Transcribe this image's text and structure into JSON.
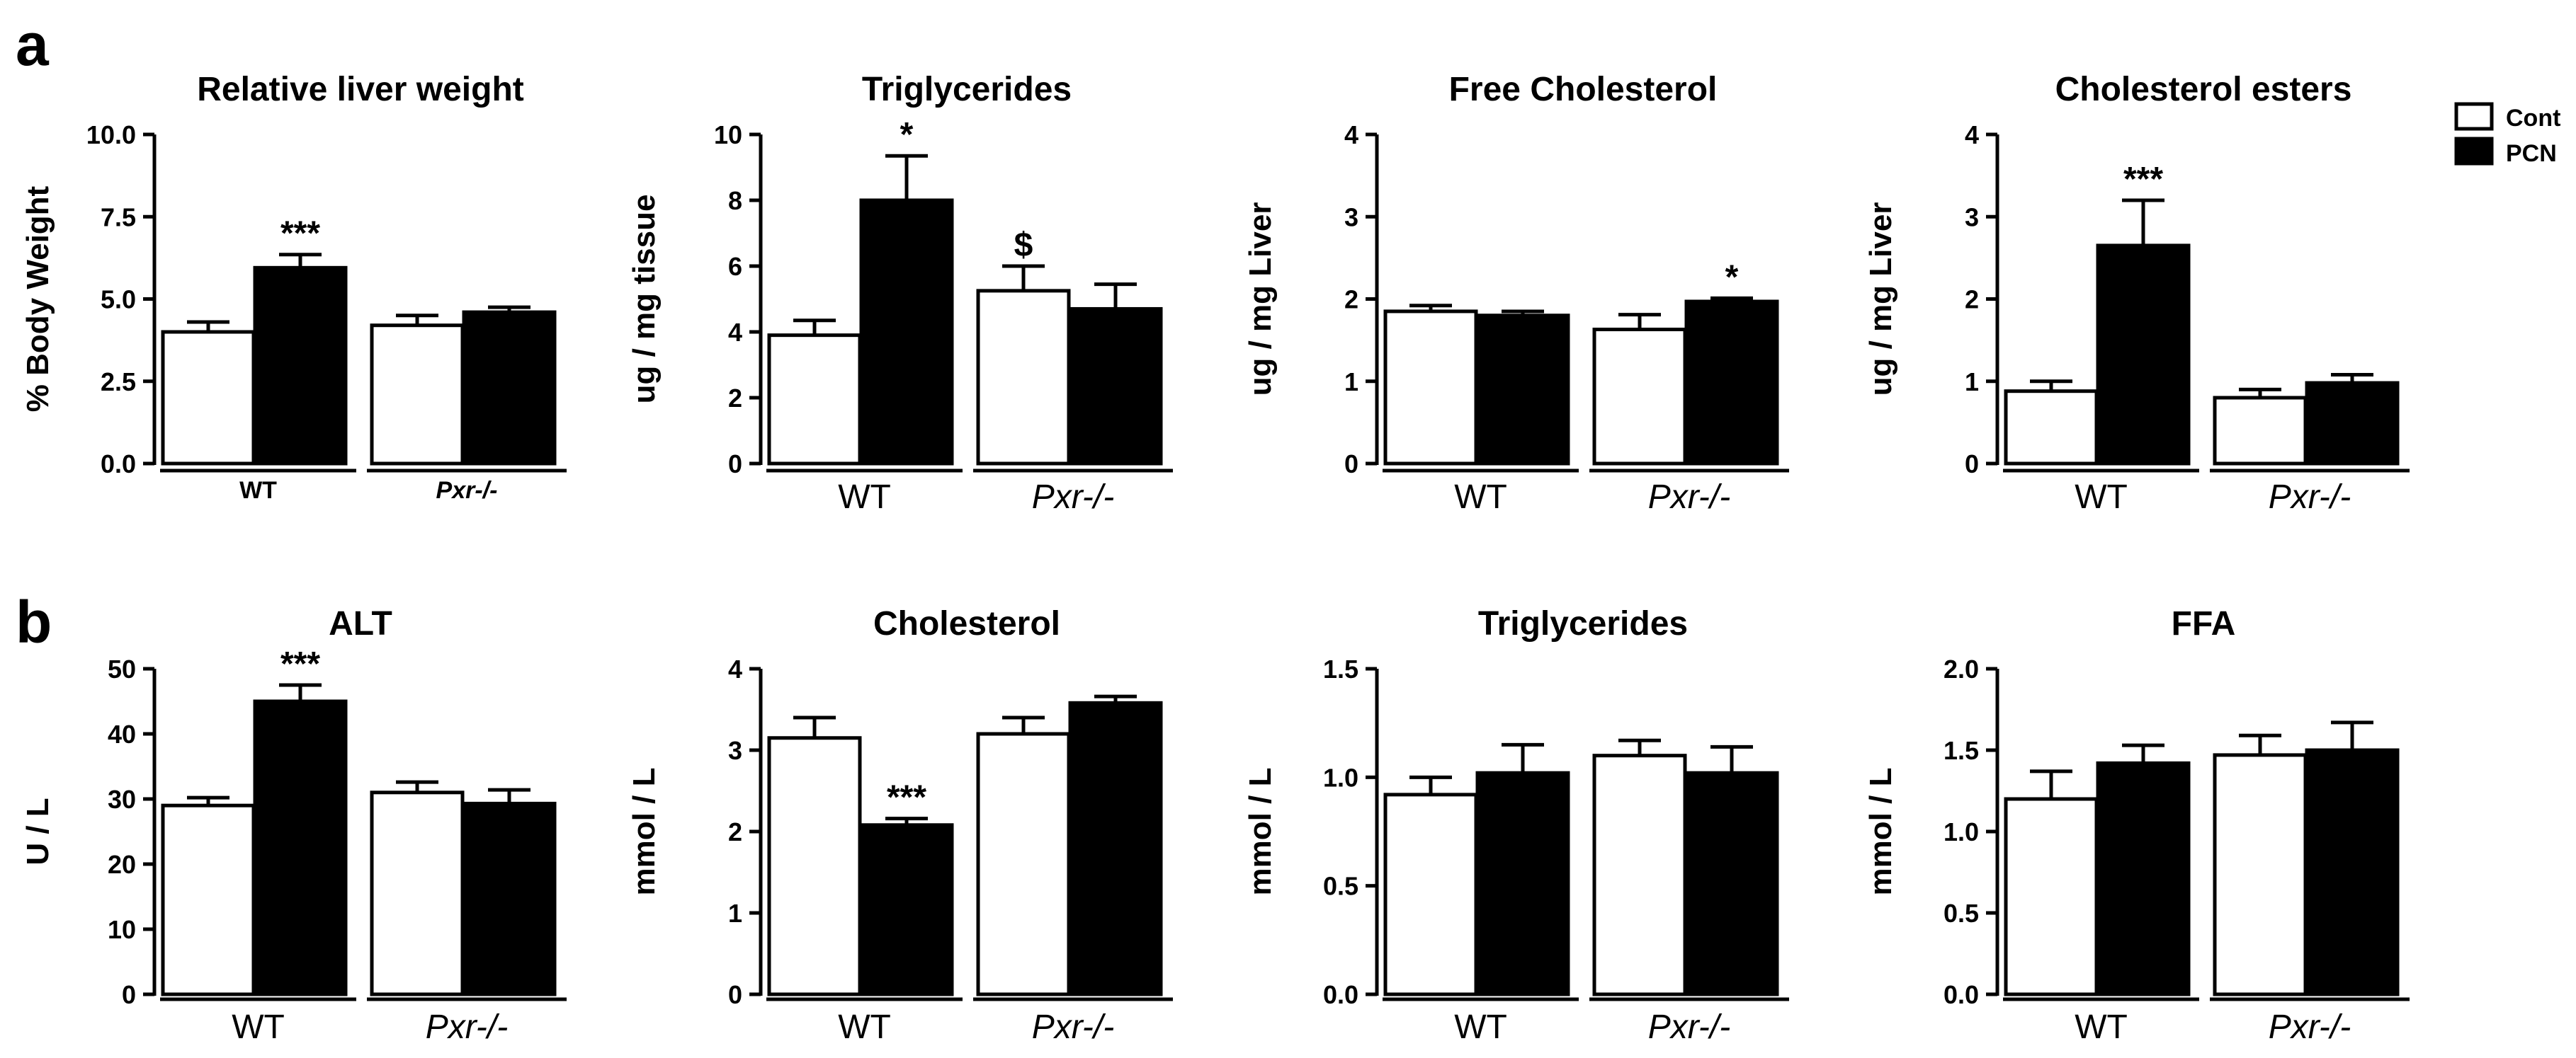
{
  "figure": {
    "panel_labels": [
      "a",
      "b"
    ],
    "legend": [
      {
        "label": "Cont",
        "fill": "#ffffff"
      },
      {
        "label": "PCN",
        "fill": "#000000"
      }
    ]
  },
  "chart_data": [
    {
      "type": "bar",
      "panel": "a",
      "title": "Relative liver weight",
      "ylabel": "% Body Weight",
      "groups": [
        "WT",
        "Pxr-/-"
      ],
      "group_style": "small",
      "series": [
        {
          "name": "Cont",
          "values": [
            4.0,
            4.2
          ],
          "errors": [
            0.3,
            0.3
          ]
        },
        {
          "name": "PCN",
          "values": [
            5.95,
            4.6
          ],
          "errors": [
            0.4,
            0.15
          ]
        }
      ],
      "ylim": [
        0,
        10
      ],
      "yticks": [
        "0.0",
        "2.5",
        "5.0",
        "7.5",
        "10.0"
      ],
      "annotations": [
        {
          "group": 0,
          "series": 1,
          "text": "***"
        }
      ]
    },
    {
      "type": "bar",
      "panel": "a",
      "title": "Triglycerides",
      "ylabel": "ug / mg tissue",
      "groups": [
        "WT",
        "Pxr-/-"
      ],
      "group_style": "big",
      "series": [
        {
          "name": "Cont",
          "values": [
            3.9,
            5.25
          ],
          "errors": [
            0.45,
            0.75
          ]
        },
        {
          "name": "PCN",
          "values": [
            8.0,
            4.7
          ],
          "errors": [
            1.35,
            0.75
          ]
        }
      ],
      "ylim": [
        0,
        10
      ],
      "yticks": [
        "0",
        "2",
        "4",
        "6",
        "8",
        "10"
      ],
      "annotations": [
        {
          "group": 0,
          "series": 1,
          "text": "*"
        },
        {
          "group": 1,
          "series": 0,
          "text": "$"
        }
      ]
    },
    {
      "type": "bar",
      "panel": "a",
      "title": "Free Cholesterol",
      "ylabel": "ug / mg Liver",
      "groups": [
        "WT",
        "Pxr-/-"
      ],
      "group_style": "big",
      "series": [
        {
          "name": "Cont",
          "values": [
            1.85,
            1.63
          ],
          "errors": [
            0.07,
            0.18
          ]
        },
        {
          "name": "PCN",
          "values": [
            1.8,
            1.97
          ],
          "errors": [
            0.05,
            0.04
          ]
        }
      ],
      "ylim": [
        0,
        4
      ],
      "yticks": [
        "0",
        "1",
        "2",
        "3",
        "4"
      ],
      "annotations": [
        {
          "group": 1,
          "series": 1,
          "text": "*"
        }
      ]
    },
    {
      "type": "bar",
      "panel": "a",
      "title": "Cholesterol esters",
      "ylabel": "ug / mg Liver",
      "groups": [
        "WT",
        "Pxr-/-"
      ],
      "group_style": "big",
      "series": [
        {
          "name": "Cont",
          "values": [
            0.88,
            0.8
          ],
          "errors": [
            0.12,
            0.1
          ]
        },
        {
          "name": "PCN",
          "values": [
            2.65,
            0.98
          ],
          "errors": [
            0.55,
            0.1
          ]
        }
      ],
      "ylim": [
        0,
        4
      ],
      "yticks": [
        "0",
        "1",
        "2",
        "3",
        "4"
      ],
      "annotations": [
        {
          "group": 0,
          "series": 1,
          "text": "***"
        }
      ]
    },
    {
      "type": "bar",
      "panel": "b",
      "title": "ALT",
      "ylabel": "U / L",
      "groups": [
        "WT",
        "Pxr-/-"
      ],
      "group_style": "big",
      "series": [
        {
          "name": "Cont",
          "values": [
            29,
            31
          ],
          "errors": [
            1.2,
            1.6
          ]
        },
        {
          "name": "PCN",
          "values": [
            45,
            29.3
          ],
          "errors": [
            2.5,
            2.1
          ]
        }
      ],
      "ylim": [
        0,
        50
      ],
      "yticks": [
        "0",
        "10",
        "20",
        "30",
        "40",
        "50"
      ],
      "annotations": [
        {
          "group": 0,
          "series": 1,
          "text": "***"
        }
      ]
    },
    {
      "type": "bar",
      "panel": "b",
      "title": "Cholesterol",
      "ylabel": "mmol / L",
      "groups": [
        "WT",
        "Pxr-/-"
      ],
      "group_style": "big",
      "series": [
        {
          "name": "Cont",
          "values": [
            3.15,
            3.2
          ],
          "errors": [
            0.25,
            0.2
          ]
        },
        {
          "name": "PCN",
          "values": [
            2.08,
            3.58
          ],
          "errors": [
            0.08,
            0.08
          ]
        }
      ],
      "ylim": [
        0,
        4
      ],
      "yticks": [
        "0",
        "1",
        "2",
        "3",
        "4"
      ],
      "annotations": [
        {
          "group": 0,
          "series": 1,
          "text": "***"
        }
      ]
    },
    {
      "type": "bar",
      "panel": "b",
      "title": "Triglycerides",
      "ylabel": "mmol / L",
      "groups": [
        "WT",
        "Pxr-/-"
      ],
      "group_style": "big",
      "series": [
        {
          "name": "Cont",
          "values": [
            0.92,
            1.1
          ],
          "errors": [
            0.08,
            0.07
          ]
        },
        {
          "name": "PCN",
          "values": [
            1.02,
            1.02
          ],
          "errors": [
            0.13,
            0.12
          ]
        }
      ],
      "ylim": [
        0,
        1.5
      ],
      "yticks": [
        "0.0",
        "0.5",
        "1.0",
        "1.5"
      ],
      "annotations": []
    },
    {
      "type": "bar",
      "panel": "b",
      "title": "FFA",
      "ylabel": "mmol / L",
      "groups": [
        "WT",
        "Pxr-/-"
      ],
      "group_style": "big",
      "series": [
        {
          "name": "Cont",
          "values": [
            1.2,
            1.47
          ],
          "errors": [
            0.17,
            0.12
          ]
        },
        {
          "name": "PCN",
          "values": [
            1.42,
            1.5
          ],
          "errors": [
            0.11,
            0.17
          ]
        }
      ],
      "ylim": [
        0,
        2
      ],
      "yticks": [
        "0.0",
        "0.5",
        "1.0",
        "1.5",
        "2.0"
      ],
      "annotations": []
    }
  ]
}
